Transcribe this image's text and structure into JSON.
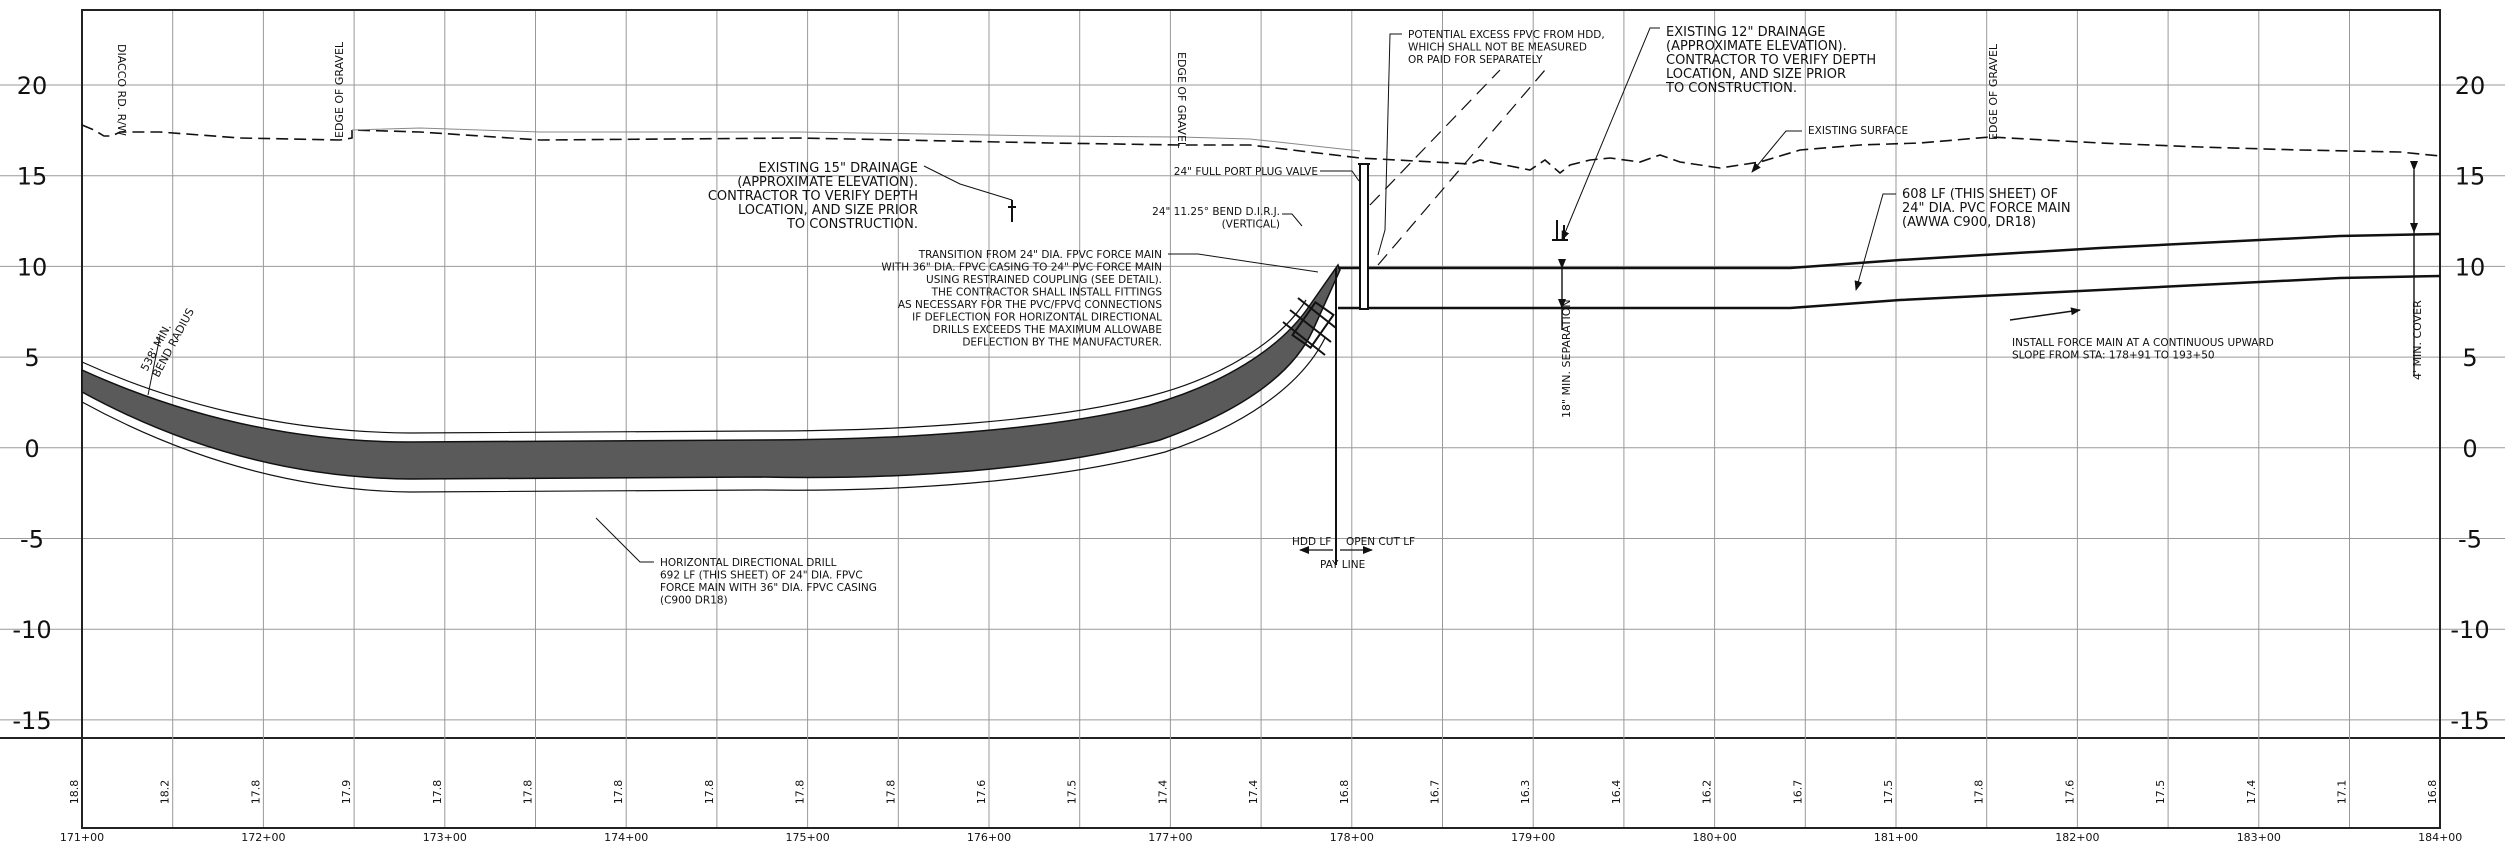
{
  "elevation_axis": {
    "left_labels": [
      "20",
      "15",
      "10",
      "5",
      "0",
      "-5",
      "-10",
      "-15"
    ],
    "right_labels": [
      "20",
      "15",
      "10",
      "5",
      "0",
      "-5",
      "-10",
      "-15"
    ],
    "range_ft": [
      -15,
      20
    ]
  },
  "stations": [
    "171+00",
    "172+00",
    "173+00",
    "174+00",
    "175+00",
    "176+00",
    "177+00",
    "178+00",
    "179+00",
    "180+00",
    "181+00",
    "182+00",
    "183+00",
    "184+00"
  ],
  "ground_elevations": [
    "18.8",
    "18.2",
    "17.8",
    "17.9",
    "17.8",
    "17.8",
    "17.8",
    "17.8",
    "17.8",
    "17.8",
    "17.6",
    "17.5",
    "17.4",
    "17.4",
    "16.8",
    "16.7",
    "16.3",
    "16.4",
    "16.2",
    "16.7",
    "17.5",
    "17.8",
    "17.6",
    "17.5",
    "17.4",
    "17.1",
    "16.8"
  ],
  "vertical_labels": {
    "row": "DIACCO RD. R/W",
    "gravel_1": "EDGE OF GRAVEL",
    "gravel_2": "EDGE OF GRAVEL",
    "gravel_3": "EDGE OF GRAVEL",
    "separation": "18\" MIN. SEPARATION",
    "cover": "4' MIN. COVER",
    "bend_radius_1": "538' MIN.",
    "bend_radius_2": "BEND RADIUS"
  },
  "notes": {
    "excess_fpvc": [
      "POTENTIAL EXCESS FPVC FROM HDD,",
      "WHICH SHALL NOT BE MEASURED",
      "OR PAID FOR SEPARATELY"
    ],
    "drainage_12": [
      "EXISTING 12\" DRAINAGE",
      "(APPROXIMATE ELEVATION).",
      "CONTRACTOR TO VERIFY DEPTH",
      "LOCATION, AND SIZE PRIOR",
      "TO CONSTRUCTION."
    ],
    "existing_surface": "EXISTING SURFACE",
    "plug_valve": "24\" FULL PORT PLUG VALVE",
    "bend": [
      "24\" 11.25° BEND D.I.R.J.",
      "(VERTICAL)"
    ],
    "drainage_15": [
      "EXISTING 15\" DRAINAGE",
      "(APPROXIMATE ELEVATION).",
      "CONTRACTOR TO VERIFY DEPTH",
      "LOCATION, AND SIZE PRIOR",
      "TO CONSTRUCTION."
    ],
    "transition": [
      "TRANSITION FROM 24\" DIA. FPVC FORCE MAIN",
      "WITH 36\" DIA. FPVC CASING TO 24\" PVC FORCE MAIN",
      "USING RESTRAINED COUPLING (SEE DETAIL).",
      "THE CONTRACTOR SHALL INSTALL FITTINGS",
      "AS NECESSARY FOR THE PVC/FPVC CONNECTIONS",
      "IF DEFLECTION FOR HORIZONTAL DIRECTIONAL",
      "DRILLS EXCEEDS THE MAXIMUM ALLOWABE",
      "DEFLECTION BY THE MANUFACTURER."
    ],
    "force_main": [
      "608 LF (THIS SHEET) OF",
      "24\" DIA. PVC FORCE MAIN",
      "(AWWA C900, DR18)"
    ],
    "upward_slope": [
      "INSTALL FORCE MAIN AT A CONTINUOUS UPWARD",
      "SLOPE FROM STA: 178+91 TO 193+50"
    ],
    "hdd": [
      "HORIZONTAL DIRECTIONAL DRILL",
      "692 LF (THIS SHEET) OF 24\" DIA. FPVC",
      "FORCE MAIN WITH 36\" DIA. FPVC CASING",
      "(C900 DR18)"
    ],
    "hdd_lf": "HDD LF",
    "open_cut_lf": "OPEN CUT LF",
    "pay_line": "PAY LINE"
  },
  "colors": {
    "line": "#111111",
    "grid": "#9a9a9a",
    "casing_fill": "#5a5a5a",
    "gray_text": "#6a6a6a"
  }
}
